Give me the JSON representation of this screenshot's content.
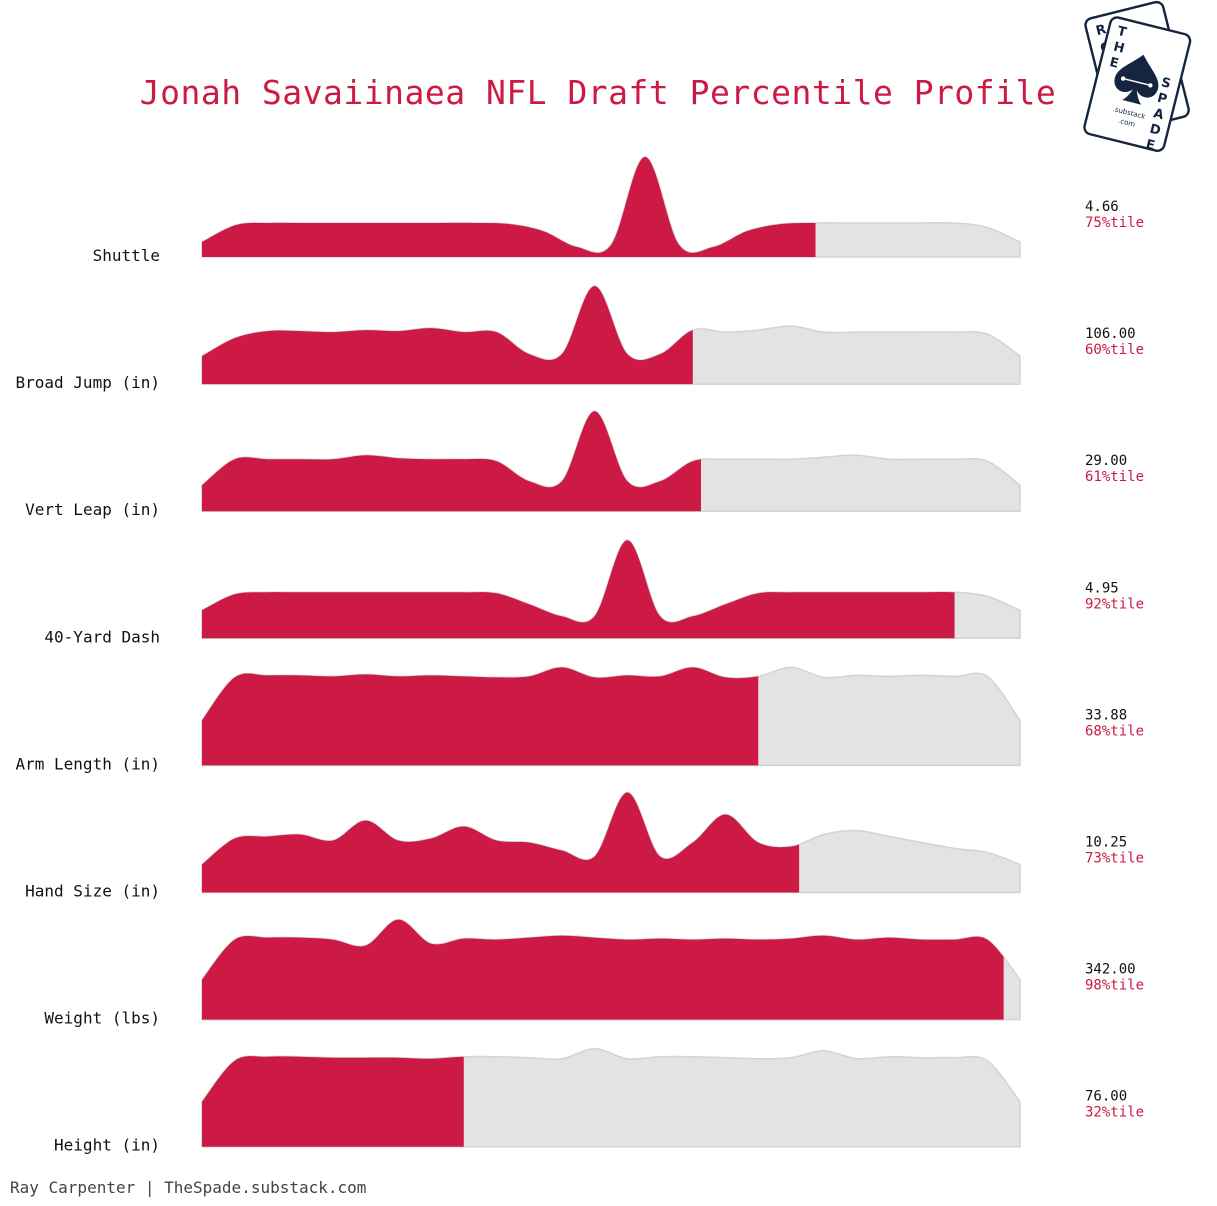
{
  "title": "Jonah Savaiinaea NFL Draft Percentile Profile",
  "credit": "Ray Carpenter | TheSpade.substack.com",
  "logo": {
    "front_letters": [
      "T",
      "H",
      "E",
      "S",
      "P",
      "A",
      "D",
      "E"
    ],
    "back_letters": [
      "R",
      "C",
      "E"
    ],
    "substack_text": ".substack",
    "com_text": ".com",
    "icon": "spade-icon"
  },
  "colors": {
    "highlight": "#cc1a44",
    "background_fill": "#e3e3e3",
    "background_stroke": "#d3d3d3",
    "title": "#cc1a44",
    "logo_navy": "#16253f"
  },
  "chart_data": {
    "type": "area",
    "description_kind": "ridgeline density with percentile fill",
    "rows": [
      {
        "metric": "Shuttle",
        "value": "4.66",
        "percentile_label": "75%tile",
        "percentile": 75,
        "density": [
          0.15,
          0.32,
          0.34,
          0.34,
          0.34,
          0.34,
          0.34,
          0.34,
          0.34,
          0.33,
          0.26,
          0.1,
          0.12,
          1.0,
          0.12,
          0.1,
          0.26,
          0.33,
          0.34,
          0.34,
          0.34,
          0.34,
          0.34,
          0.3,
          0.15
        ]
      },
      {
        "metric": "Broad Jump (in)",
        "value": "106.00",
        "percentile_label": "60%tile",
        "percentile": 60,
        "density": [
          0.28,
          0.46,
          0.53,
          0.53,
          0.52,
          0.54,
          0.53,
          0.56,
          0.52,
          0.52,
          0.3,
          0.3,
          0.98,
          0.3,
          0.3,
          0.54,
          0.52,
          0.54,
          0.58,
          0.52,
          0.52,
          0.52,
          0.52,
          0.52,
          0.5,
          0.28
        ]
      },
      {
        "metric": "Vert Leap (in)",
        "value": "29.00",
        "percentile_label": "61%tile",
        "percentile": 61,
        "density": [
          0.26,
          0.52,
          0.52,
          0.52,
          0.52,
          0.56,
          0.53,
          0.52,
          0.52,
          0.5,
          0.3,
          0.3,
          1.0,
          0.3,
          0.3,
          0.5,
          0.52,
          0.52,
          0.52,
          0.54,
          0.56,
          0.52,
          0.52,
          0.52,
          0.5,
          0.26
        ]
      },
      {
        "metric": "40-Yard Dash",
        "value": "4.95",
        "percentile_label": "92%tile",
        "percentile": 92,
        "density": [
          0.28,
          0.44,
          0.46,
          0.46,
          0.46,
          0.46,
          0.46,
          0.46,
          0.46,
          0.45,
          0.34,
          0.22,
          0.22,
          0.98,
          0.22,
          0.22,
          0.34,
          0.45,
          0.46,
          0.46,
          0.46,
          0.46,
          0.46,
          0.46,
          0.42,
          0.28
        ]
      },
      {
        "metric": "Arm Length (in)",
        "value": "33.88",
        "percentile_label": "68%tile",
        "percentile": 68,
        "density": [
          0.45,
          0.88,
          0.9,
          0.9,
          0.89,
          0.91,
          0.89,
          0.9,
          0.89,
          0.88,
          0.89,
          0.98,
          0.88,
          0.9,
          0.89,
          0.98,
          0.88,
          0.89,
          0.98,
          0.88,
          0.9,
          0.89,
          0.9,
          0.89,
          0.89,
          0.45
        ]
      },
      {
        "metric": "Hand Size (in)",
        "value": "10.25",
        "percentile_label": "73%tile",
        "percentile": 73,
        "density": [
          0.28,
          0.54,
          0.56,
          0.58,
          0.52,
          0.72,
          0.52,
          0.54,
          0.66,
          0.52,
          0.5,
          0.42,
          0.36,
          1.0,
          0.36,
          0.5,
          0.78,
          0.5,
          0.46,
          0.58,
          0.62,
          0.56,
          0.5,
          0.44,
          0.4,
          0.28
        ]
      },
      {
        "metric": "Weight (lbs)",
        "value": "342.00",
        "percentile_label": "98%tile",
        "percentile": 98,
        "density": [
          0.4,
          0.8,
          0.82,
          0.82,
          0.8,
          0.74,
          1.0,
          0.76,
          0.81,
          0.8,
          0.82,
          0.84,
          0.82,
          0.8,
          0.81,
          0.8,
          0.81,
          0.8,
          0.81,
          0.84,
          0.8,
          0.82,
          0.8,
          0.8,
          0.8,
          0.4
        ]
      },
      {
        "metric": "Height (in)",
        "value": "76.00",
        "percentile_label": "32%tile",
        "percentile": 32,
        "density": [
          0.45,
          0.86,
          0.9,
          0.9,
          0.89,
          0.89,
          0.89,
          0.88,
          0.9,
          0.9,
          0.89,
          0.88,
          0.98,
          0.88,
          0.9,
          0.9,
          0.89,
          0.88,
          0.89,
          0.96,
          0.88,
          0.9,
          0.89,
          0.89,
          0.86,
          0.45
        ]
      }
    ]
  }
}
